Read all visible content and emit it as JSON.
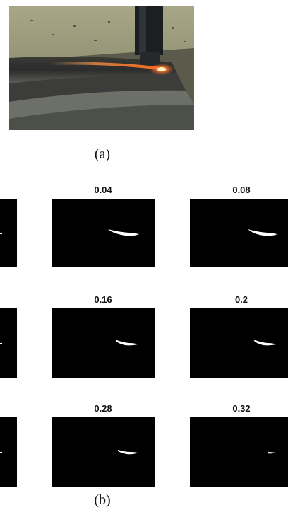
{
  "figure": {
    "caption_a": "(a)",
    "caption_b": "(b)"
  },
  "panels": [
    {
      "title": "0.04"
    },
    {
      "title": "0.08"
    },
    {
      "title": "0.16"
    },
    {
      "title": "0.2"
    },
    {
      "title": "0.28"
    },
    {
      "title": "0.32"
    }
  ]
}
